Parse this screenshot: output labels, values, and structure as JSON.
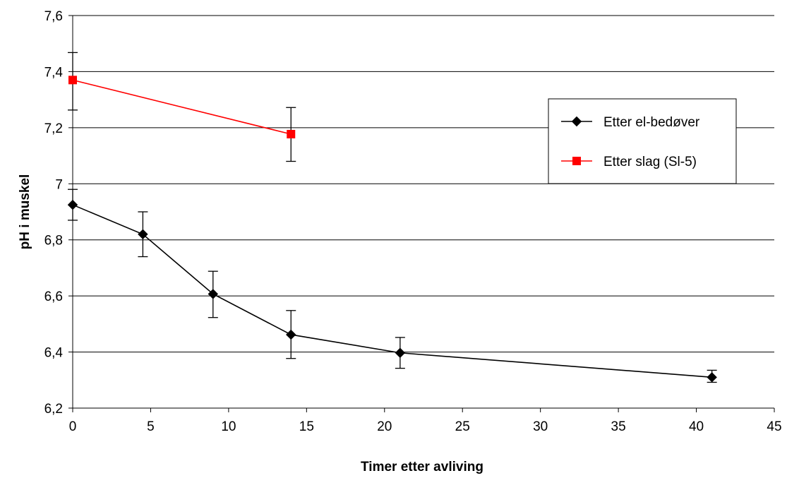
{
  "chart_data": {
    "type": "line",
    "title": "",
    "xlabel": "Timer etter avliving",
    "ylabel": "pH i muskel",
    "xlim": [
      0,
      45
    ],
    "ylim": [
      6.2,
      7.6
    ],
    "xticks": [
      0,
      5,
      10,
      15,
      20,
      25,
      30,
      35,
      40,
      45
    ],
    "xtick_labels": [
      "0",
      "5",
      "10",
      "15",
      "20",
      "25",
      "30",
      "35",
      "40",
      "45"
    ],
    "yticks": [
      6.2,
      6.4,
      6.6,
      6.8,
      7.0,
      7.2,
      7.4,
      7.6
    ],
    "ytick_labels": [
      "6,2",
      "6,4",
      "6,6",
      "6,8",
      "7",
      "7,2",
      "7,4",
      "7,6"
    ],
    "grid": "horizontal",
    "legend": "right",
    "series": [
      {
        "name": "Etter el-bedøver",
        "color": "#000000",
        "marker": "diamond",
        "x": [
          0,
          4.5,
          9,
          14,
          21,
          41
        ],
        "y": [
          6.925,
          6.82,
          6.607,
          6.462,
          6.397,
          6.31
        ],
        "err_low": [
          6.87,
          6.74,
          6.523,
          6.377,
          6.342,
          6.292
        ],
        "err_high": [
          6.98,
          6.9,
          6.688,
          6.548,
          6.452,
          6.335
        ]
      },
      {
        "name": "Etter slag (Sl-5)",
        "color": "#ff0000",
        "marker": "square",
        "x": [
          0,
          14
        ],
        "y": [
          7.37,
          7.177
        ],
        "err_low": [
          7.263,
          7.08
        ],
        "err_high": [
          7.468,
          7.272
        ]
      }
    ]
  }
}
